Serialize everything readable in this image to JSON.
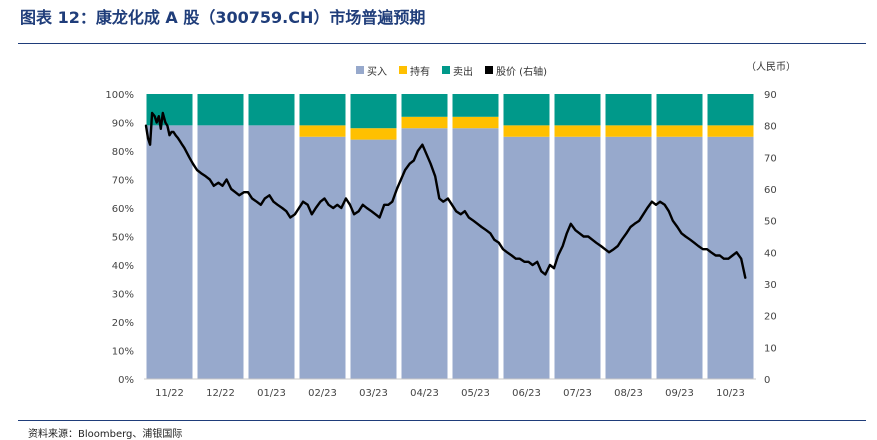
{
  "title": "图表 12：康龙化成 A 股（300759.CH）市场普遍预期",
  "source": "资料来源：Bloomberg、浦银国际",
  "unit_label": "（人民币）",
  "colors": {
    "buy": "#97a9cc",
    "hold": "#ffc000",
    "sell": "#00998a",
    "price": "#000000",
    "title": "#1f3d7a"
  },
  "chart_data": {
    "type": "bar",
    "stacked": true,
    "categories": [
      "11/22",
      "12/22",
      "01/23",
      "02/23",
      "03/23",
      "04/23",
      "05/23",
      "06/23",
      "07/23",
      "08/23",
      "09/23",
      "10/23"
    ],
    "series": [
      {
        "name": "买入",
        "color": "#97a9cc",
        "values": [
          89,
          89,
          89,
          85,
          84,
          88,
          88,
          85,
          85,
          85,
          85,
          85
        ]
      },
      {
        "name": "持有",
        "color": "#ffc000",
        "values": [
          0,
          0,
          0,
          4,
          4,
          4,
          4,
          4,
          4,
          4,
          4,
          4
        ]
      },
      {
        "name": "卖出",
        "color": "#00998a",
        "values": [
          11,
          11,
          11,
          11,
          12,
          8,
          8,
          11,
          11,
          11,
          11,
          11
        ]
      }
    ],
    "line": {
      "name": "股价 (右轴)",
      "color": "#000000",
      "axis": "right",
      "points": [
        [
          0.0,
          80
        ],
        [
          0.04,
          76
        ],
        [
          0.08,
          74
        ],
        [
          0.12,
          84
        ],
        [
          0.17,
          83
        ],
        [
          0.21,
          81
        ],
        [
          0.25,
          83
        ],
        [
          0.29,
          79
        ],
        [
          0.33,
          84
        ],
        [
          0.38,
          81
        ],
        [
          0.42,
          80
        ],
        [
          0.46,
          77
        ],
        [
          0.5,
          78
        ],
        [
          0.54,
          78
        ],
        [
          0.58,
          77
        ],
        [
          0.63,
          76
        ],
        [
          0.67,
          75
        ],
        [
          0.71,
          74
        ],
        [
          0.75,
          73
        ],
        [
          0.85,
          70
        ],
        [
          0.92,
          68
        ],
        [
          1.0,
          66
        ],
        [
          1.08,
          65
        ],
        [
          1.17,
          64
        ],
        [
          1.25,
          63
        ],
        [
          1.33,
          61
        ],
        [
          1.42,
          62
        ],
        [
          1.5,
          61
        ],
        [
          1.58,
          63
        ],
        [
          1.67,
          60
        ],
        [
          1.75,
          59
        ],
        [
          1.83,
          58
        ],
        [
          1.92,
          59
        ],
        [
          2.0,
          59
        ],
        [
          2.08,
          57
        ],
        [
          2.17,
          56
        ],
        [
          2.25,
          55
        ],
        [
          2.33,
          57
        ],
        [
          2.42,
          58
        ],
        [
          2.5,
          56
        ],
        [
          2.58,
          55
        ],
        [
          2.67,
          54
        ],
        [
          2.75,
          53
        ],
        [
          2.83,
          51
        ],
        [
          2.92,
          52
        ],
        [
          3.0,
          54
        ],
        [
          3.08,
          56
        ],
        [
          3.17,
          55
        ],
        [
          3.25,
          52
        ],
        [
          3.33,
          54
        ],
        [
          3.42,
          56
        ],
        [
          3.5,
          57
        ],
        [
          3.58,
          55
        ],
        [
          3.67,
          54
        ],
        [
          3.75,
          55
        ],
        [
          3.83,
          54
        ],
        [
          3.92,
          57
        ],
        [
          4.0,
          55
        ],
        [
          4.08,
          52
        ],
        [
          4.17,
          53
        ],
        [
          4.25,
          55
        ],
        [
          4.33,
          54
        ],
        [
          4.42,
          53
        ],
        [
          4.5,
          52
        ],
        [
          4.58,
          51
        ],
        [
          4.67,
          55
        ],
        [
          4.75,
          55
        ],
        [
          4.83,
          56
        ],
        [
          4.92,
          60
        ],
        [
          5.0,
          63
        ],
        [
          5.08,
          66
        ],
        [
          5.17,
          68
        ],
        [
          5.25,
          69
        ],
        [
          5.33,
          72
        ],
        [
          5.42,
          74
        ],
        [
          5.5,
          71
        ],
        [
          5.58,
          68
        ],
        [
          5.67,
          64
        ],
        [
          5.75,
          57
        ],
        [
          5.83,
          56
        ],
        [
          5.92,
          57
        ],
        [
          6.0,
          55
        ],
        [
          6.08,
          53
        ],
        [
          6.17,
          52
        ],
        [
          6.25,
          53
        ],
        [
          6.33,
          51
        ],
        [
          6.42,
          50
        ],
        [
          6.5,
          49
        ],
        [
          6.58,
          48
        ],
        [
          6.67,
          47
        ],
        [
          6.75,
          46
        ],
        [
          6.83,
          44
        ],
        [
          6.92,
          43
        ],
        [
          7.0,
          41
        ],
        [
          7.08,
          40
        ],
        [
          7.17,
          39
        ],
        [
          7.25,
          38
        ],
        [
          7.33,
          38
        ],
        [
          7.42,
          37
        ],
        [
          7.5,
          37
        ],
        [
          7.58,
          36
        ],
        [
          7.67,
          37
        ],
        [
          7.75,
          34
        ],
        [
          7.83,
          33
        ],
        [
          7.92,
          36
        ],
        [
          8.0,
          35
        ],
        [
          8.08,
          39
        ],
        [
          8.17,
          42
        ],
        [
          8.25,
          46
        ],
        [
          8.33,
          49
        ],
        [
          8.42,
          47
        ],
        [
          8.5,
          46
        ],
        [
          8.58,
          45
        ],
        [
          8.67,
          45
        ],
        [
          8.75,
          44
        ],
        [
          8.83,
          43
        ],
        [
          8.92,
          42
        ],
        [
          9.0,
          41
        ],
        [
          9.08,
          40
        ],
        [
          9.17,
          41
        ],
        [
          9.25,
          42
        ],
        [
          9.33,
          44
        ],
        [
          9.42,
          46
        ],
        [
          9.5,
          48
        ],
        [
          9.58,
          49
        ],
        [
          9.67,
          50
        ],
        [
          9.75,
          52
        ],
        [
          9.83,
          54
        ],
        [
          9.92,
          56
        ],
        [
          10.0,
          55
        ],
        [
          10.08,
          56
        ],
        [
          10.17,
          55
        ],
        [
          10.25,
          53
        ],
        [
          10.33,
          50
        ],
        [
          10.42,
          48
        ],
        [
          10.5,
          46
        ],
        [
          10.58,
          45
        ],
        [
          10.67,
          44
        ],
        [
          10.75,
          43
        ],
        [
          10.83,
          42
        ],
        [
          10.92,
          41
        ],
        [
          11.0,
          41
        ],
        [
          11.08,
          40
        ],
        [
          11.17,
          39
        ],
        [
          11.25,
          39
        ],
        [
          11.33,
          38
        ],
        [
          11.42,
          38
        ],
        [
          11.5,
          39
        ],
        [
          11.58,
          40
        ],
        [
          11.67,
          38
        ],
        [
          11.75,
          32
        ]
      ]
    },
    "y_left": {
      "min": 0,
      "max": 100,
      "step": 10,
      "suffix": "%"
    },
    "y_right": {
      "min": 0,
      "max": 90,
      "step": 10
    },
    "legend_position": "top-center"
  }
}
